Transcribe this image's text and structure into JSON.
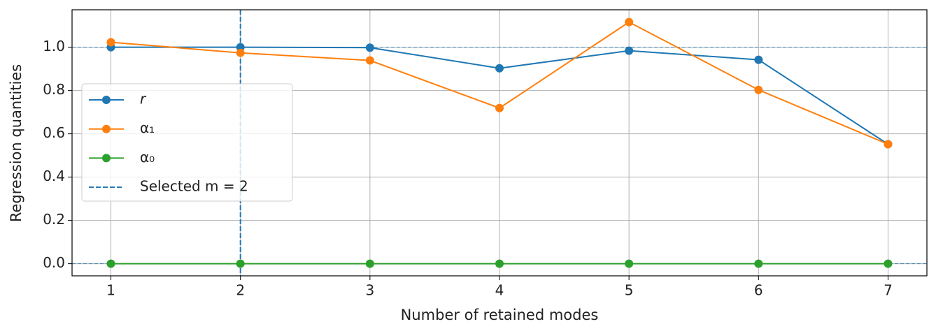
{
  "chart_data": {
    "type": "line",
    "xlabel": "Number of retained modes",
    "ylabel": "Regression quantities",
    "x": [
      1,
      2,
      3,
      4,
      5,
      6,
      7
    ],
    "series": [
      {
        "name": "r",
        "color": "#1f77b4",
        "values": [
          1.0,
          1.0,
          0.998,
          0.903,
          0.984,
          0.942,
          0.552
        ]
      },
      {
        "name": "α₁",
        "color": "#ff7f0e",
        "values": [
          1.023,
          0.974,
          0.939,
          0.719,
          1.116,
          0.803,
          0.552
        ]
      },
      {
        "name": "α₀",
        "color": "#2ca02c",
        "values": [
          0,
          0,
          0,
          0,
          0,
          0,
          0
        ]
      }
    ],
    "vline": {
      "name": "Selected m = 2",
      "x": 2,
      "color": "#1f77b4"
    },
    "hlines": [
      0,
      1
    ],
    "xlim": [
      0.7,
      7.3
    ],
    "ylim": [
      -0.056,
      1.173
    ],
    "xticks": [
      1,
      2,
      3,
      4,
      5,
      6,
      7
    ],
    "yticks": [
      {
        "value": 0,
        "label": "0.0"
      },
      0.2,
      0.4,
      0.6,
      0.8,
      {
        "value": 1,
        "label": "1.0"
      }
    ],
    "grid": true
  }
}
